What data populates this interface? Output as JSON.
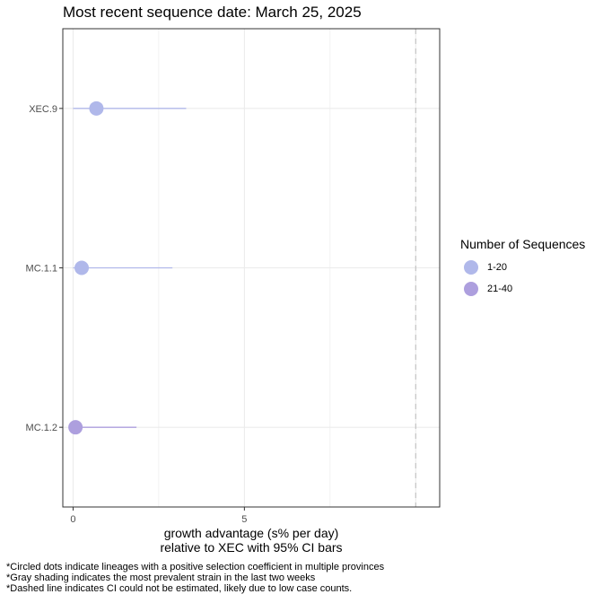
{
  "chart_data": {
    "type": "scatter",
    "title": "Most recent sequence date: March 25, 2025",
    "xlabel_line1": "growth advantage (s% per day)",
    "xlabel_line2": "relative to  XEC  with 95% CI bars",
    "xlim": [
      -0.3,
      10.7
    ],
    "xticks": [
      0,
      5
    ],
    "categories": [
      "XEC.9",
      "MC.1.1",
      "MC.1.2"
    ],
    "points": [
      {
        "lineage": "XEC.9",
        "estimate": 0.68,
        "ci_low": 0.0,
        "ci_high": 3.3,
        "group": "1-20"
      },
      {
        "lineage": "MC.1.1",
        "estimate": 0.25,
        "ci_low": 0.0,
        "ci_high": 2.9,
        "group": "1-20"
      },
      {
        "lineage": "MC.1.2",
        "estimate": 0.07,
        "ci_low": 0.0,
        "ci_high": 1.85,
        "group": "21-40"
      }
    ],
    "dashed_line_x": 10.0,
    "grid": true,
    "legend": {
      "title": "Number of Sequences",
      "position": "right",
      "items": [
        {
          "label": "1-20",
          "color": "#b0b8ea"
        },
        {
          "label": "21-40",
          "color": "#ad9fde"
        }
      ]
    }
  },
  "footnotes": [
    "*Circled dots indicate lineages with a positive selection coefficient in multiple provinces",
    "*Gray shading indicates the most prevalent strain in the last two weeks",
    "*Dashed line indicates CI could not be estimated, likely due to low case counts."
  ]
}
